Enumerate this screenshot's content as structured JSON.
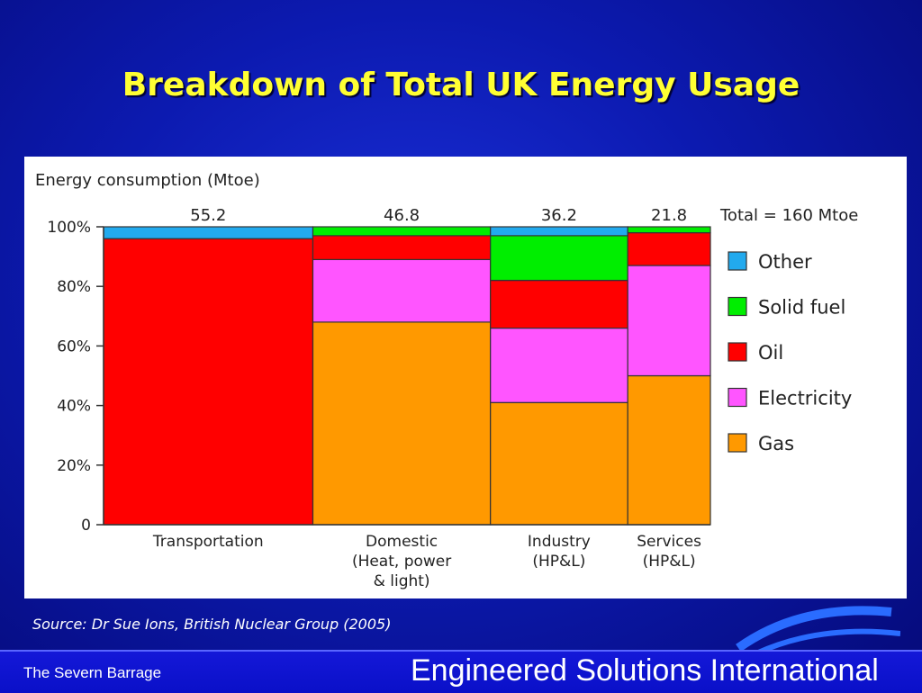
{
  "slide": {
    "title": "Breakdown of Total UK Energy Usage",
    "source": "Source: Dr Sue Ions, British Nuclear Group (2005)",
    "footer_left": "The Severn Barrage",
    "footer_right": "Engineered Solutions International"
  },
  "chart_data": {
    "type": "bar",
    "subtype": "stacked-100-percent-variable-width",
    "title": "Energy consumption (Mtoe)",
    "total_label": "Total = 160 Mtoe",
    "y_ticks": [
      "0",
      "20%",
      "40%",
      "60%",
      "80%",
      "100%"
    ],
    "ylim": [
      0,
      100
    ],
    "categories": [
      {
        "lines": [
          "Transportation"
        ],
        "total": 55.2,
        "total_label": "55.2"
      },
      {
        "lines": [
          "Domestic",
          "(Heat, power",
          "& light)"
        ],
        "total": 46.8,
        "total_label": "46.8"
      },
      {
        "lines": [
          "Industry",
          "(HP&L)"
        ],
        "total": 36.2,
        "total_label": "36.2"
      },
      {
        "lines": [
          "Services",
          "(HP&L)"
        ],
        "total": 21.8,
        "total_label": "21.8"
      }
    ],
    "series": [
      {
        "name": "Gas",
        "color": "#ff9900",
        "values": [
          0,
          68,
          41,
          50
        ]
      },
      {
        "name": "Electricity",
        "color": "#ff55ff",
        "values": [
          0,
          21,
          25,
          37
        ]
      },
      {
        "name": "Oil",
        "color": "#ff0000",
        "values": [
          96,
          8,
          16,
          11
        ]
      },
      {
        "name": "Solid fuel",
        "color": "#00ee00",
        "values": [
          0,
          3,
          15,
          2
        ]
      },
      {
        "name": "Other",
        "color": "#22aaee",
        "values": [
          4,
          0,
          3,
          0
        ]
      }
    ],
    "legend": [
      "Other",
      "Solid fuel",
      "Oil",
      "Electricity",
      "Gas"
    ],
    "legend_position": "right"
  }
}
